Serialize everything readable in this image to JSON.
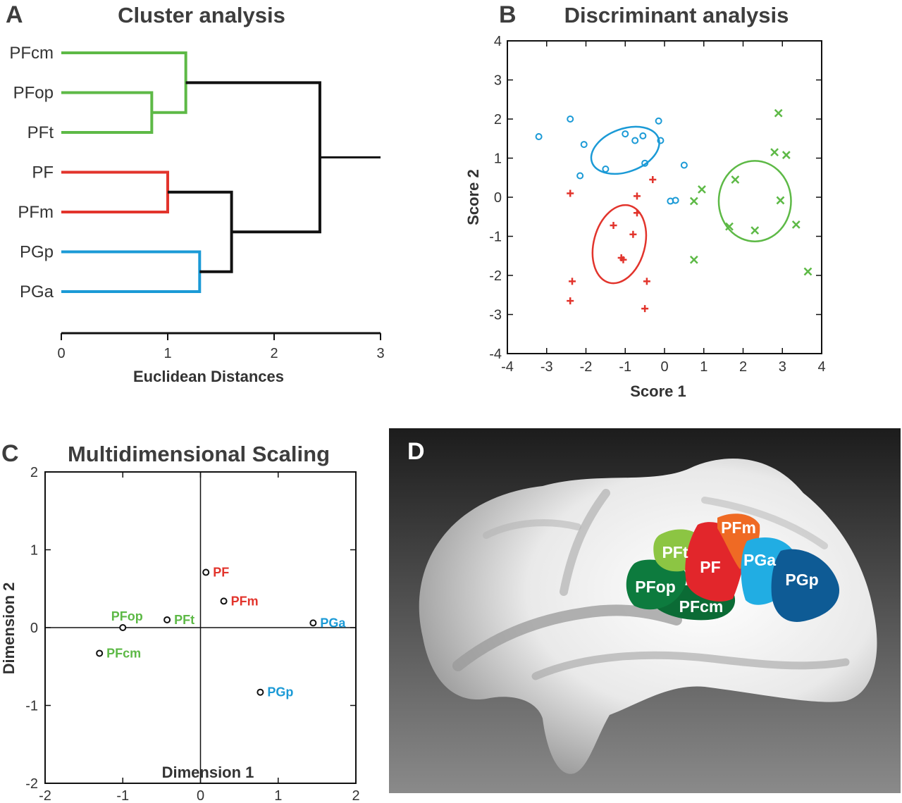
{
  "panels": {
    "a": {
      "letter": "A",
      "title": "Cluster analysis"
    },
    "b": {
      "letter": "B",
      "title": "Discriminant analysis"
    },
    "c": {
      "letter": "C",
      "title": "Multidimensional Scaling"
    },
    "d": {
      "letter": "D"
    }
  },
  "colors": {
    "green": "#5db946",
    "red": "#e2342c",
    "blue": "#1b9ad6",
    "black": "#111111"
  },
  "chart_data": [
    {
      "type": "dendrogram",
      "title": "Cluster analysis",
      "xlabel": "Euclidean Distances",
      "xlim": [
        0,
        3
      ],
      "xticks": [
        0,
        1,
        2,
        3
      ],
      "leaves": [
        {
          "name": "PFcm",
          "color": "green"
        },
        {
          "name": "PFop",
          "color": "green"
        },
        {
          "name": "PFt",
          "color": "green"
        },
        {
          "name": "PF",
          "color": "red"
        },
        {
          "name": "PFm",
          "color": "red"
        },
        {
          "name": "PGp",
          "color": "blue"
        },
        {
          "name": "PGa",
          "color": "blue"
        }
      ],
      "merges": [
        {
          "a": 1,
          "b": 2,
          "height": 0.85,
          "color": "green"
        },
        {
          "a": 3,
          "b": 4,
          "height": 1.0,
          "color": "red"
        },
        {
          "a": 0,
          "b": 7,
          "height": 1.17,
          "color": "green"
        },
        {
          "a": 5,
          "b": 6,
          "height": 1.3,
          "color": "blue"
        },
        {
          "a": 8,
          "b": 10,
          "height": 1.6,
          "color": "black"
        },
        {
          "a": 9,
          "b": 11,
          "height": 2.43,
          "color": "black"
        }
      ],
      "root_extent": 3.0
    },
    {
      "type": "scatter",
      "title": "Discriminant analysis",
      "xlabel": "Score 1",
      "ylabel": "Score 2",
      "xlim": [
        -4,
        4
      ],
      "ylim": [
        -4,
        4
      ],
      "xticks": [
        -4,
        -3,
        -2,
        -1,
        0,
        1,
        2,
        3,
        4
      ],
      "yticks": [
        -4,
        -3,
        -2,
        -1,
        0,
        1,
        2,
        3,
        4
      ],
      "series": [
        {
          "marker": "circle",
          "color": "blue",
          "points": [
            [
              -3.2,
              1.55
            ],
            [
              -2.4,
              2.0
            ],
            [
              -2.05,
              1.35
            ],
            [
              -2.15,
              0.55
            ],
            [
              -1.5,
              0.72
            ],
            [
              -1.0,
              1.62
            ],
            [
              -0.75,
              1.45
            ],
            [
              -0.55,
              1.57
            ],
            [
              -0.5,
              0.87
            ],
            [
              -0.15,
              1.95
            ],
            [
              -0.1,
              1.45
            ],
            [
              0.5,
              0.82
            ],
            [
              0.15,
              -0.1
            ],
            [
              0.28,
              -0.08
            ]
          ],
          "ellipse": {
            "cx": -1.0,
            "cy": 1.2,
            "rx": 0.9,
            "ry": 0.55,
            "angle": -20
          }
        },
        {
          "marker": "plus",
          "color": "red",
          "points": [
            [
              -2.4,
              0.1
            ],
            [
              -2.35,
              -2.15
            ],
            [
              -2.4,
              -2.65
            ],
            [
              -1.3,
              -0.72
            ],
            [
              -1.1,
              -1.55
            ],
            [
              -1.05,
              -1.6
            ],
            [
              -0.8,
              -0.95
            ],
            [
              -0.7,
              -0.4
            ],
            [
              -0.7,
              0.03
            ],
            [
              -0.3,
              0.45
            ],
            [
              -0.45,
              -2.15
            ],
            [
              -0.5,
              -2.85
            ]
          ],
          "ellipse": {
            "cx": -1.15,
            "cy": -1.2,
            "rx": 0.65,
            "ry": 1.02,
            "angle": 15
          }
        },
        {
          "marker": "cross",
          "color": "green",
          "points": [
            [
              0.75,
              -0.1
            ],
            [
              0.95,
              0.2
            ],
            [
              0.75,
              -1.6
            ],
            [
              1.8,
              0.45
            ],
            [
              1.65,
              -0.75
            ],
            [
              2.3,
              -0.85
            ],
            [
              2.8,
              1.15
            ],
            [
              3.1,
              1.08
            ],
            [
              2.9,
              2.15
            ],
            [
              2.95,
              -0.08
            ],
            [
              3.35,
              -0.7
            ],
            [
              3.65,
              -1.9
            ]
          ],
          "ellipse": {
            "cx": 2.3,
            "cy": -0.1,
            "rx": 0.92,
            "ry": 1.03,
            "angle": 0
          }
        }
      ]
    },
    {
      "type": "scatter",
      "title": "Multidimensional Scaling",
      "xlabel": "Dimension 1",
      "ylabel": "Dimension 2",
      "xlim": [
        -2,
        2
      ],
      "ylim": [
        -2,
        2
      ],
      "xticks": [
        -2,
        -1,
        0,
        1,
        2
      ],
      "yticks": [
        -2,
        -1,
        0,
        1,
        2
      ],
      "points": [
        {
          "label": "PF",
          "x": 0.07,
          "y": 0.71,
          "color": "red"
        },
        {
          "label": "PFm",
          "x": 0.3,
          "y": 0.34,
          "color": "red"
        },
        {
          "label": "PFop",
          "x": -1.0,
          "y": 0.0,
          "color": "green"
        },
        {
          "label": "PFt",
          "x": -0.43,
          "y": 0.1,
          "color": "green"
        },
        {
          "label": "PFcm",
          "x": -1.3,
          "y": -0.33,
          "color": "green"
        },
        {
          "label": "PGa",
          "x": 1.45,
          "y": 0.06,
          "color": "blue"
        },
        {
          "label": "PGp",
          "x": 0.77,
          "y": -0.83,
          "color": "blue"
        }
      ]
    }
  ],
  "brain": {
    "background_gradient": [
      "#1c1c1c",
      "#8a8a8a"
    ],
    "regions": [
      {
        "label": "PFt",
        "color": "#8cc543"
      },
      {
        "label": "PFm",
        "color": "#ef6a24"
      },
      {
        "label": "PF",
        "color": "#e2262b"
      },
      {
        "label": "PGa",
        "color": "#21ade3"
      },
      {
        "label": "PGp",
        "color": "#0e5b95"
      },
      {
        "label": "PFop",
        "color": "#0d7b3e"
      },
      {
        "label": "PFcm",
        "color": "#0b6b35"
      }
    ]
  }
}
